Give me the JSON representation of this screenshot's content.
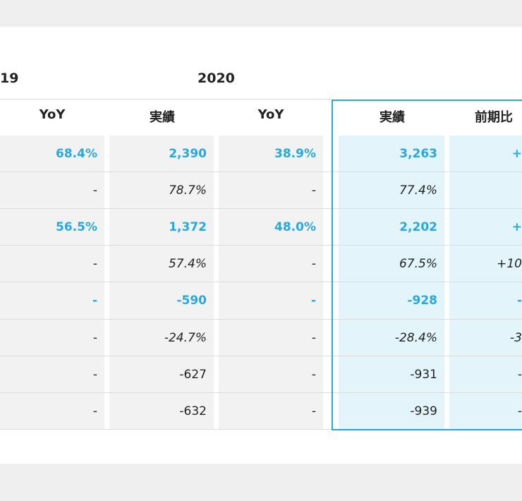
{
  "header": {
    "years": [
      "19",
      "2020"
    ],
    "columns": [
      "YoY",
      "実績",
      "YoY",
      "実績",
      "前期比"
    ]
  },
  "table": {
    "rows": [
      [
        "68.4%",
        "2,390",
        "38.9%",
        "3,263",
        "+"
      ],
      [
        "-",
        "78.7%",
        "-",
        "77.4%",
        null
      ],
      [
        "56.5%",
        "1,372",
        "48.0%",
        "2,202",
        "+"
      ],
      [
        "-",
        "57.4%",
        "-",
        "67.5%",
        "+10"
      ],
      [
        "-",
        "-590",
        "-",
        "-928",
        "-"
      ],
      [
        "-",
        "-24.7%",
        "-",
        "-28.4%",
        "-3"
      ],
      [
        "-",
        "-627",
        "-",
        "-931",
        "-"
      ],
      [
        "-",
        "-632",
        "-",
        "-939",
        "-"
      ]
    ]
  }
}
